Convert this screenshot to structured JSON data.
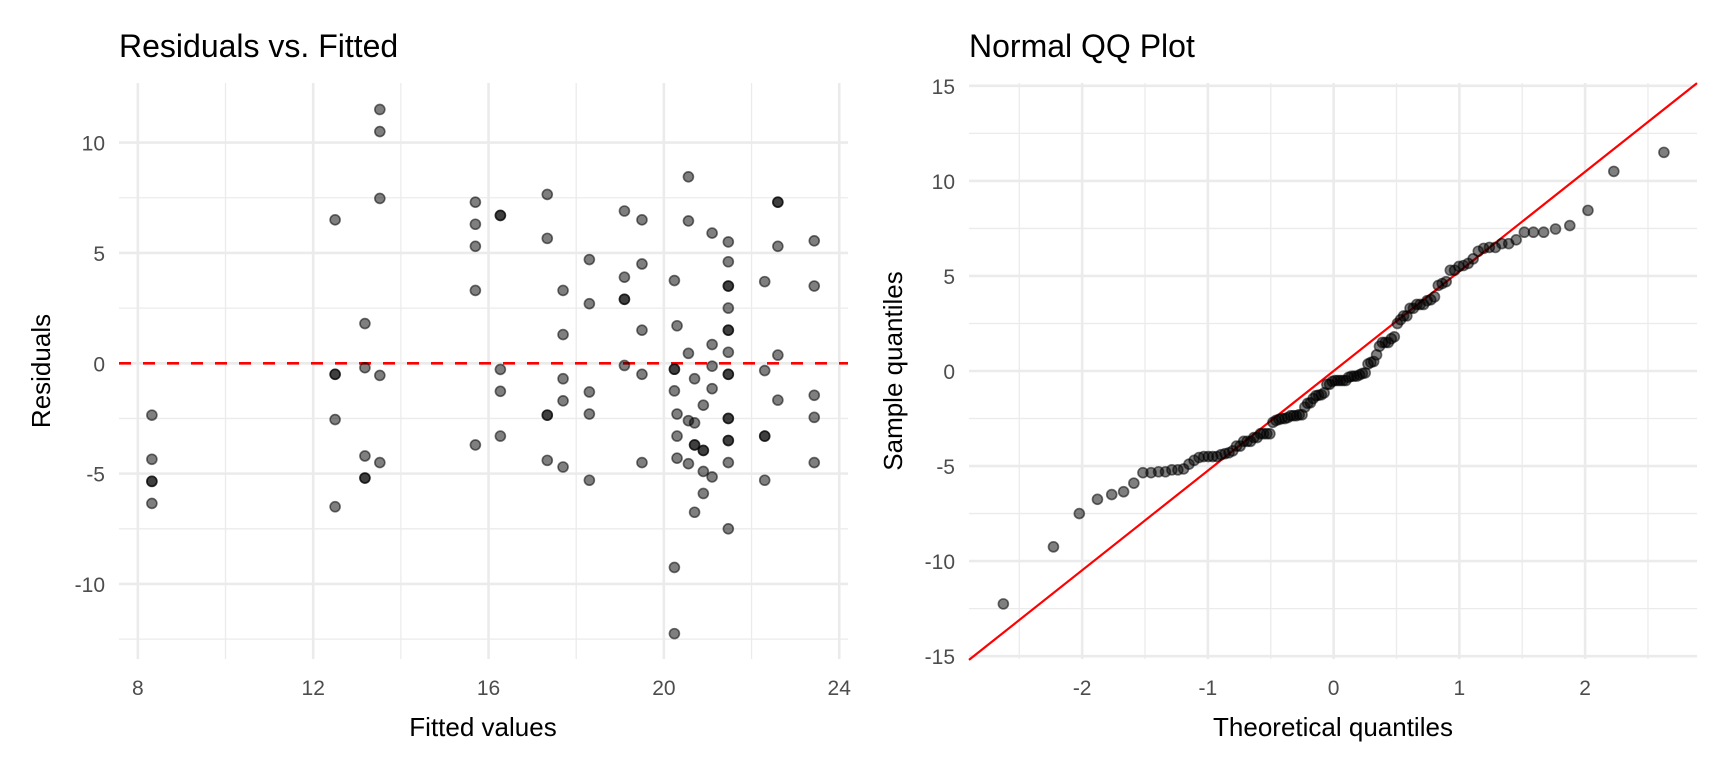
{
  "chart_data": [
    {
      "type": "scatter",
      "title": "Residuals vs. Fitted",
      "xlabel": "Fitted values",
      "ylabel": "Residuals",
      "xlim": [
        7.57,
        24.2
      ],
      "ylim": [
        -13.4,
        12.7
      ],
      "xticks": [
        8,
        12,
        16,
        20,
        24
      ],
      "xtick_labels": [
        "8",
        "12",
        "16",
        "20",
        "24"
      ],
      "xminor": [
        10,
        14,
        18,
        22
      ],
      "yticks": [
        -10,
        -5,
        0,
        5,
        10
      ],
      "ytick_labels": [
        "-10",
        "-5",
        "0",
        "5",
        "10"
      ],
      "yminor": [
        -12.5,
        -7.5,
        -2.5,
        2.5,
        7.5
      ],
      "grid": true,
      "reference_line": {
        "type": "horizontal",
        "y": 0,
        "style": "dashed",
        "color": "#ff0000"
      },
      "point_color": "#000000",
      "points": [
        [
          8.32,
          -2.35
        ],
        [
          8.32,
          -4.35
        ],
        [
          8.32,
          -5.35
        ],
        [
          8.32,
          -5.35
        ],
        [
          8.32,
          -6.35
        ],
        [
          12.5,
          6.5
        ],
        [
          12.5,
          -0.5
        ],
        [
          12.5,
          -0.5
        ],
        [
          12.5,
          -2.55
        ],
        [
          12.5,
          -6.5
        ],
        [
          13.18,
          1.8
        ],
        [
          13.18,
          -0.2
        ],
        [
          13.18,
          -4.2
        ],
        [
          13.18,
          -5.2
        ],
        [
          13.18,
          -5.2
        ],
        [
          13.52,
          11.5
        ],
        [
          13.52,
          10.5
        ],
        [
          13.52,
          7.47
        ],
        [
          13.52,
          -0.55
        ],
        [
          13.52,
          -4.5
        ],
        [
          15.7,
          7.3
        ],
        [
          15.7,
          6.3
        ],
        [
          15.7,
          5.3
        ],
        [
          15.7,
          3.3
        ],
        [
          15.7,
          -3.7
        ],
        [
          16.27,
          6.7
        ],
        [
          16.27,
          6.7
        ],
        [
          16.27,
          -0.28
        ],
        [
          16.27,
          -1.27
        ],
        [
          16.27,
          -3.3
        ],
        [
          17.34,
          7.65
        ],
        [
          17.34,
          5.66
        ],
        [
          17.34,
          -2.35
        ],
        [
          17.34,
          -2.35
        ],
        [
          17.34,
          -4.4
        ],
        [
          17.7,
          3.3
        ],
        [
          17.7,
          1.3
        ],
        [
          17.7,
          -0.7
        ],
        [
          17.7,
          -1.7
        ],
        [
          17.7,
          -4.7
        ],
        [
          18.3,
          4.7
        ],
        [
          18.3,
          2.7
        ],
        [
          18.3,
          -1.3
        ],
        [
          18.3,
          -2.3
        ],
        [
          18.3,
          -5.3
        ],
        [
          19.1,
          6.9
        ],
        [
          19.1,
          3.9
        ],
        [
          19.1,
          2.9
        ],
        [
          19.1,
          2.9
        ],
        [
          19.1,
          -0.1
        ],
        [
          19.5,
          6.5
        ],
        [
          19.5,
          4.5
        ],
        [
          19.5,
          1.5
        ],
        [
          19.5,
          -0.5
        ],
        [
          19.5,
          -4.5
        ],
        [
          20.24,
          3.75
        ],
        [
          20.24,
          -0.27
        ],
        [
          20.24,
          -0.27
        ],
        [
          20.24,
          -1.25
        ],
        [
          20.24,
          -9.25
        ],
        [
          20.24,
          -12.25
        ],
        [
          20.3,
          1.7
        ],
        [
          20.3,
          -2.3
        ],
        [
          20.3,
          -3.3
        ],
        [
          20.3,
          -4.3
        ],
        [
          20.56,
          8.45
        ],
        [
          20.56,
          6.45
        ],
        [
          20.56,
          0.45
        ],
        [
          20.56,
          -2.6
        ],
        [
          20.56,
          -4.55
        ],
        [
          20.7,
          -0.7
        ],
        [
          20.7,
          -2.7
        ],
        [
          20.7,
          -3.7
        ],
        [
          20.7,
          -3.7
        ],
        [
          20.7,
          -6.75
        ],
        [
          20.9,
          -1.9
        ],
        [
          20.9,
          -3.95
        ],
        [
          20.9,
          -3.95
        ],
        [
          20.9,
          -4.9
        ],
        [
          20.9,
          -5.9
        ],
        [
          21.1,
          5.9
        ],
        [
          21.1,
          0.85
        ],
        [
          21.1,
          -0.13
        ],
        [
          21.1,
          -1.15
        ],
        [
          21.1,
          -5.15
        ],
        [
          21.47,
          5.5
        ],
        [
          21.47,
          4.6
        ],
        [
          21.47,
          3.5
        ],
        [
          21.47,
          3.5
        ],
        [
          21.47,
          2.5
        ],
        [
          21.47,
          1.5
        ],
        [
          21.47,
          1.5
        ],
        [
          21.47,
          0.5
        ],
        [
          21.47,
          -0.5
        ],
        [
          21.47,
          -0.5
        ],
        [
          21.47,
          -2.5
        ],
        [
          21.47,
          -2.5
        ],
        [
          21.47,
          -3.5
        ],
        [
          21.47,
          -3.5
        ],
        [
          21.47,
          -4.5
        ],
        [
          21.47,
          -7.5
        ],
        [
          22.3,
          3.7
        ],
        [
          22.3,
          -0.33
        ],
        [
          22.3,
          -3.3
        ],
        [
          22.3,
          -3.3
        ],
        [
          22.3,
          -5.3
        ],
        [
          22.6,
          7.3
        ],
        [
          22.6,
          7.3
        ],
        [
          22.6,
          5.3
        ],
        [
          22.6,
          0.37
        ],
        [
          22.6,
          -1.67
        ],
        [
          23.43,
          5.55
        ],
        [
          23.43,
          3.5
        ],
        [
          23.43,
          -1.45
        ],
        [
          23.43,
          -2.45
        ],
        [
          23.43,
          -4.5
        ]
      ]
    },
    {
      "type": "scatter",
      "title": "Normal QQ Plot",
      "xlabel": "Theoretical quantiles",
      "ylabel": "Sample quantiles",
      "xlim": [
        -2.9,
        2.89
      ],
      "ylim": [
        -15.15,
        15.15
      ],
      "xticks": [
        -2,
        -1,
        0,
        1,
        2
      ],
      "xtick_labels": [
        "-2",
        "-1",
        "0",
        "1",
        "2"
      ],
      "xminor": [
        -2.5,
        -1.5,
        -0.5,
        0.5,
        1.5,
        2.5
      ],
      "yticks": [
        -15,
        -10,
        -5,
        0,
        5,
        10,
        15
      ],
      "ytick_labels": [
        "-15",
        "-10",
        "-5",
        "0",
        "5",
        "10",
        "15"
      ],
      "yminor": [
        -12.5,
        -7.5,
        -2.5,
        2.5,
        7.5,
        12.5
      ],
      "grid": true,
      "reference_line": {
        "type": "abline",
        "intercept": 0,
        "slope": 5.24,
        "color": "#ff0000"
      },
      "point_color": "#000000"
    }
  ]
}
